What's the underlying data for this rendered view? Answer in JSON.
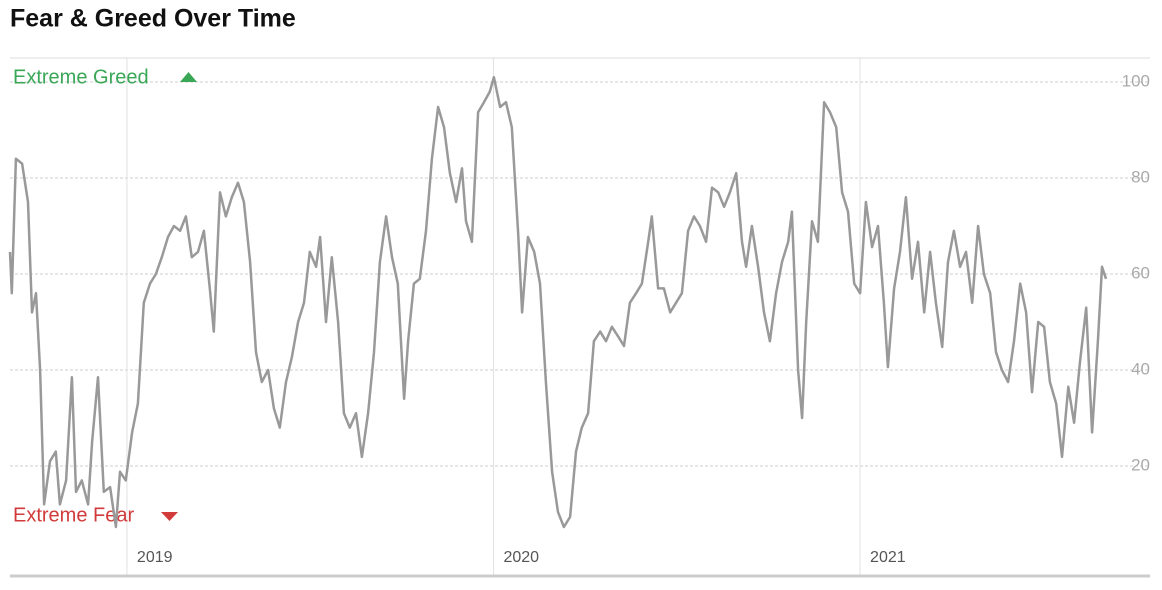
{
  "chart_data": {
    "type": "line",
    "title": "Fear & Greed Over Time",
    "annotations": [
      {
        "text": "Extreme Greed",
        "color": "#3aa757"
      },
      {
        "text": "Extreme Fear",
        "color": "#d23b3b"
      }
    ],
    "xlim": [
      2018.681,
      2021.791
    ],
    "xticks": [
      2019,
      2020,
      2021
    ],
    "ylim": [
      5,
      105
    ],
    "yticks": [
      20,
      40,
      60,
      80,
      100
    ],
    "grid": true,
    "x": [
      2018.681,
      2018.686,
      2018.697,
      2018.714,
      2018.73,
      2018.741,
      2018.752,
      2018.763,
      2018.774,
      2018.79,
      2018.806,
      2018.817,
      2018.834,
      2018.85,
      2018.861,
      2018.877,
      2018.894,
      2018.905,
      2018.921,
      2018.937,
      2018.954,
      2018.97,
      2018.981,
      2018.997,
      2019.014,
      2019.03,
      2019.046,
      2019.063,
      2019.079,
      2019.095,
      2019.112,
      2019.128,
      2019.145,
      2019.161,
      2019.177,
      2019.194,
      2019.21,
      2019.226,
      2019.237,
      2019.254,
      2019.27,
      2019.286,
      2019.303,
      2019.319,
      2019.336,
      2019.352,
      2019.368,
      2019.385,
      2019.401,
      2019.417,
      2019.434,
      2019.45,
      2019.467,
      2019.483,
      2019.499,
      2019.516,
      2019.527,
      2019.543,
      2019.559,
      2019.576,
      2019.592,
      2019.608,
      2019.625,
      2019.641,
      2019.658,
      2019.674,
      2019.69,
      2019.707,
      2019.723,
      2019.739,
      2019.756,
      2019.767,
      2019.783,
      2019.799,
      2019.816,
      2019.832,
      2019.849,
      2019.865,
      2019.881,
      2019.898,
      2019.914,
      2019.925,
      2019.941,
      2019.958,
      2019.974,
      2019.99,
      2020.001,
      2020.018,
      2020.034,
      2020.05,
      2020.067,
      2020.078,
      2020.094,
      2020.111,
      2020.127,
      2020.143,
      2020.16,
      2020.176,
      2020.192,
      2020.209,
      2020.225,
      2020.241,
      2020.258,
      2020.274,
      2020.291,
      2020.307,
      2020.323,
      2020.34,
      2020.356,
      2020.372,
      2020.389,
      2020.405,
      2020.422,
      2020.432,
      2020.449,
      2020.465,
      2020.482,
      2020.498,
      2020.514,
      2020.531,
      2020.547,
      2020.563,
      2020.58,
      2020.596,
      2020.613,
      2020.629,
      2020.645,
      2020.662,
      2020.678,
      2020.689,
      2020.705,
      2020.722,
      2020.738,
      2020.754,
      2020.771,
      2020.787,
      2020.804,
      2020.814,
      2020.831,
      2020.842,
      2020.853,
      2020.869,
      2020.885,
      2020.902,
      2020.918,
      2020.935,
      2020.951,
      2020.967,
      2020.984,
      2021.0,
      2021.016,
      2021.033,
      2021.049,
      2021.065,
      2021.076,
      2021.093,
      2021.109,
      2021.125,
      2021.142,
      2021.158,
      2021.175,
      2021.191,
      2021.207,
      2021.224,
      2021.24,
      2021.256,
      2021.273,
      2021.289,
      2021.306,
      2021.322,
      2021.338,
      2021.355,
      2021.371,
      2021.387,
      2021.404,
      2021.42,
      2021.437,
      2021.453,
      2021.469,
      2021.486,
      2021.502,
      2021.518,
      2021.535,
      2021.551,
      2021.568,
      2021.584,
      2021.6,
      2021.617,
      2021.633,
      2021.649,
      2021.66,
      2021.671
    ],
    "series": [
      {
        "color": "#999999",
        "values": [
          64.6,
          56,
          84,
          83,
          75,
          52,
          56,
          40,
          12,
          21,
          23,
          12,
          17,
          38.5,
          14.6,
          17,
          12,
          25,
          38.5,
          14.6,
          15.6,
          7.3,
          18.8,
          17,
          27,
          33,
          54,
          58,
          60,
          63.5,
          67.7,
          70,
          69,
          72,
          63.5,
          64.6,
          69,
          57,
          48,
          77,
          72,
          76,
          79,
          75,
          62.5,
          43.7,
          37.5,
          40,
          32,
          28,
          37.5,
          42.7,
          50,
          54,
          64.6,
          61.5,
          67.7,
          50,
          63.5,
          50,
          31,
          28,
          31,
          21.9,
          31,
          43.7,
          62.5,
          72,
          63.5,
          58,
          34,
          46,
          58,
          59,
          69,
          84,
          94.8,
          90.6,
          81,
          75,
          82,
          71,
          66.7,
          93.7,
          95.8,
          98,
          101,
          94.8,
          95.8,
          90.6,
          68.7,
          52,
          67.7,
          64.6,
          58,
          37.5,
          18.8,
          10.4,
          7.3,
          9.4,
          23,
          28,
          31,
          46,
          48,
          46,
          49,
          47,
          45,
          54,
          56,
          58,
          66.7,
          72,
          57,
          57,
          52,
          54,
          56,
          69,
          72,
          70,
          66.7,
          78,
          77,
          74,
          77,
          81,
          66.7,
          61.5,
          70,
          61.5,
          52,
          46,
          56,
          62.5,
          66.7,
          73,
          40,
          30,
          50,
          71,
          66.7,
          95.8,
          93.7,
          90.6,
          77,
          73,
          58,
          56,
          75,
          65.6,
          70,
          54,
          40.6,
          57,
          64.6,
          76,
          59,
          66.7,
          52,
          64.6,
          54,
          44.8,
          62.5,
          69,
          61.5,
          64.6,
          54,
          70,
          60,
          56,
          43.7,
          40,
          37.5,
          46,
          58,
          52,
          35.4,
          50,
          49,
          37.5,
          33,
          21.9,
          36.5,
          29,
          41.7,
          53,
          27,
          46,
          61.5,
          59
        ]
      }
    ]
  }
}
